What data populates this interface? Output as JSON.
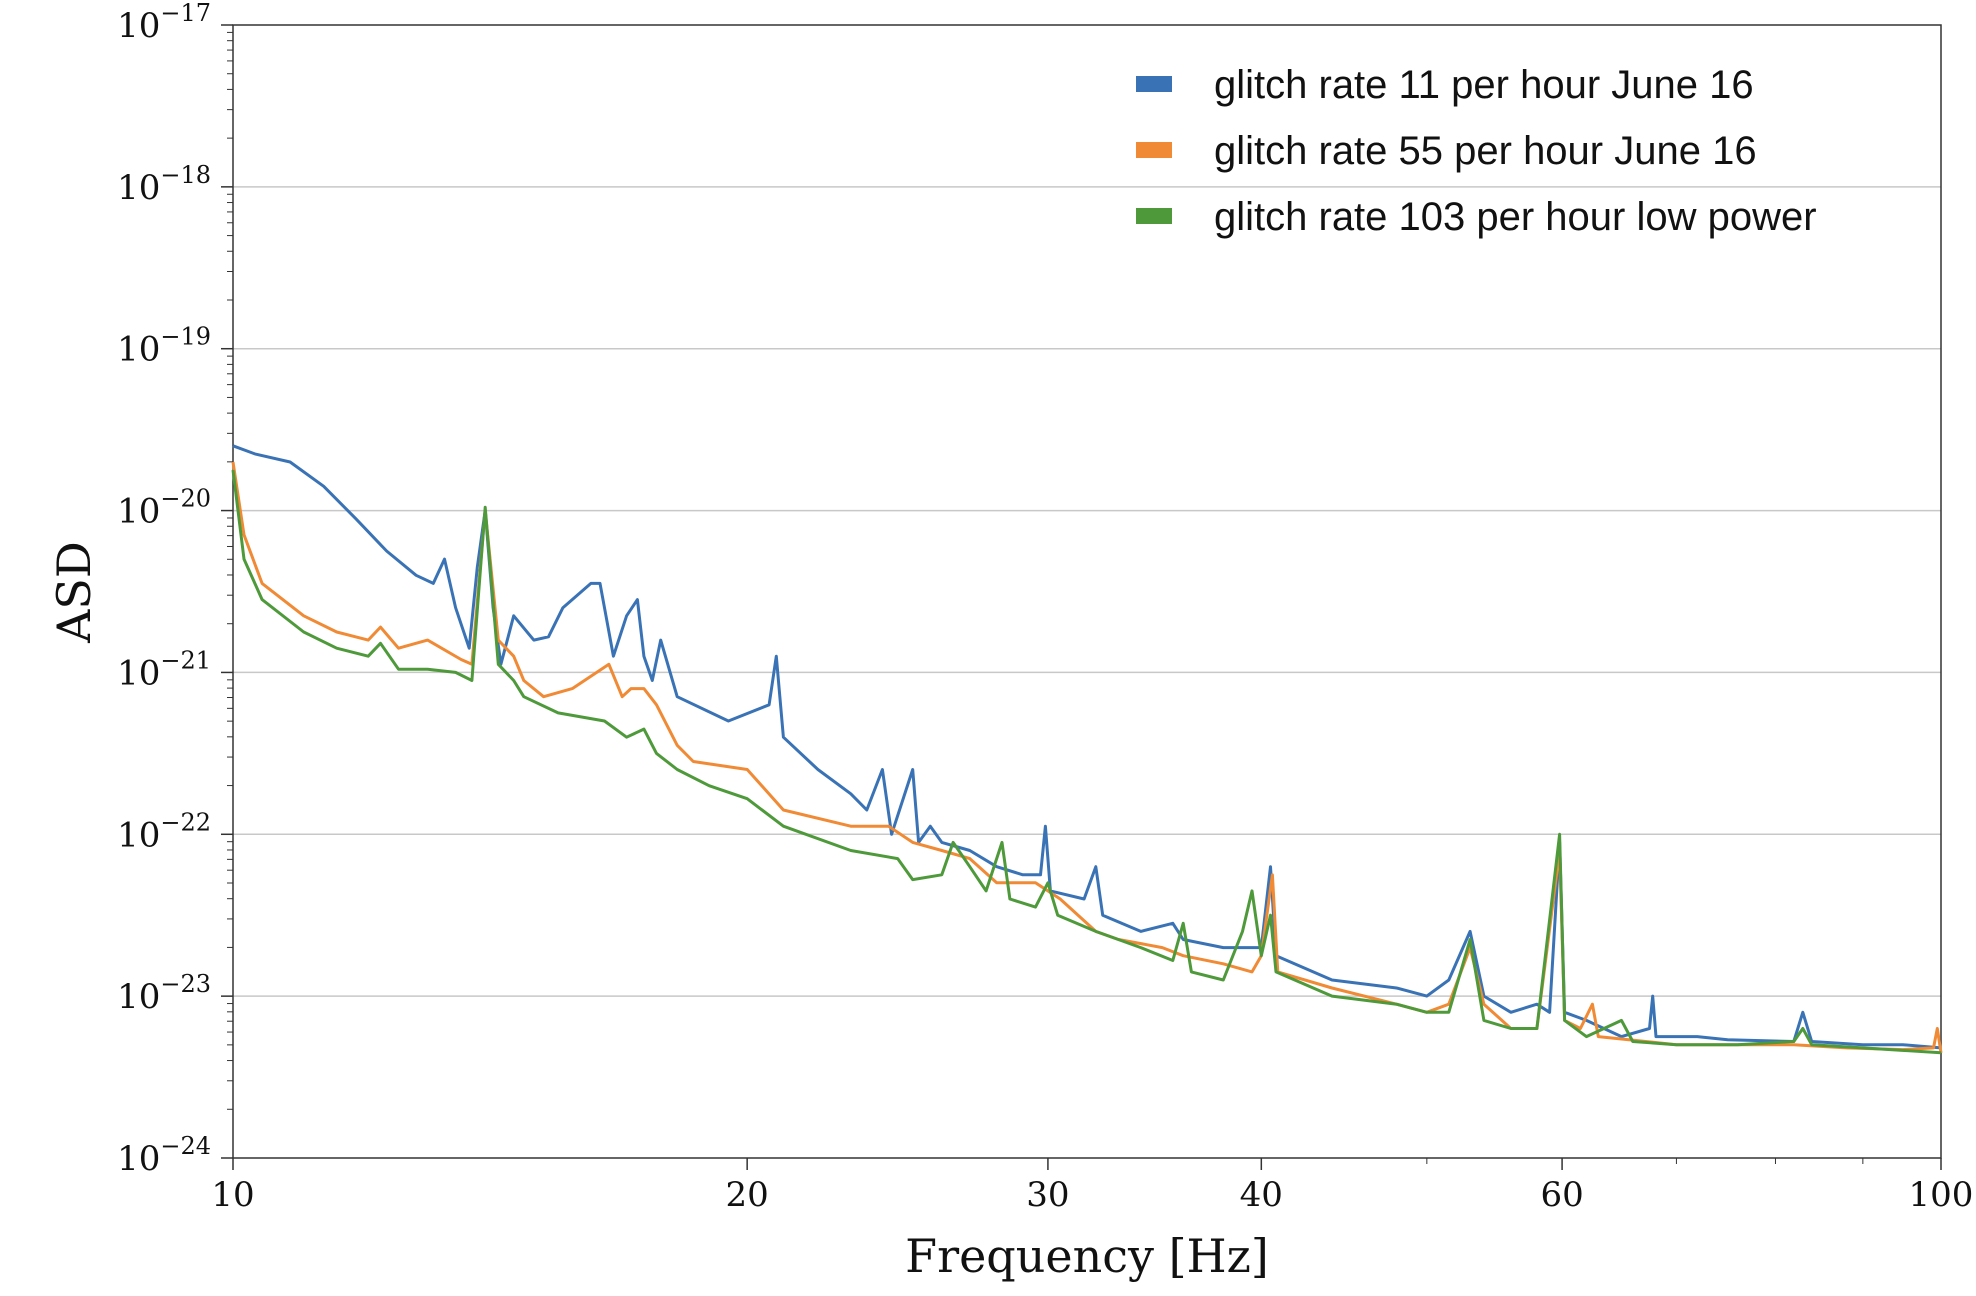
{
  "chart_data": {
    "type": "line",
    "xlabel": "Frequency [Hz]",
    "ylabel": "ASD",
    "xscale": "log",
    "yscale": "log",
    "xlim": [
      10,
      100
    ],
    "ylim": [
      1e-24,
      1e-17
    ],
    "x_ticks": [
      {
        "value": 10,
        "label": "10"
      },
      {
        "value": 20,
        "label": "20"
      },
      {
        "value": 30,
        "label": "30"
      },
      {
        "value": 40,
        "label": "40"
      },
      {
        "value": 60,
        "label": "60"
      },
      {
        "value": 100,
        "label": "100"
      }
    ],
    "y_ticks": [
      {
        "exp": -17,
        "base": "10",
        "sup": "−17"
      },
      {
        "exp": -18,
        "base": "10",
        "sup": "−18"
      },
      {
        "exp": -19,
        "base": "10",
        "sup": "−19"
      },
      {
        "exp": -20,
        "base": "10",
        "sup": "−20"
      },
      {
        "exp": -21,
        "base": "10",
        "sup": "−21"
      },
      {
        "exp": -22,
        "base": "10",
        "sup": "−22"
      },
      {
        "exp": -23,
        "base": "10",
        "sup": "−23"
      },
      {
        "exp": -24,
        "base": "10",
        "sup": "−24"
      }
    ],
    "grid": "horizontal",
    "legend_position": "top-right",
    "series": [
      {
        "name": "glitch rate 11 per hour June 16",
        "color": "#3a73b5",
        "points": [
          [
            10,
            -19.6
          ],
          [
            10.3,
            -19.65
          ],
          [
            10.8,
            -19.7
          ],
          [
            11.3,
            -19.85
          ],
          [
            11.8,
            -20.05
          ],
          [
            12.3,
            -20.25
          ],
          [
            12.8,
            -20.4
          ],
          [
            13.1,
            -20.45
          ],
          [
            13.3,
            -20.3
          ],
          [
            13.5,
            -20.6
          ],
          [
            13.75,
            -20.85
          ],
          [
            13.9,
            -20.35
          ],
          [
            14.05,
            -20.0
          ],
          [
            14.2,
            -20.6
          ],
          [
            14.35,
            -20.95
          ],
          [
            14.6,
            -20.65
          ],
          [
            15,
            -20.8
          ],
          [
            15.3,
            -20.78
          ],
          [
            15.6,
            -20.6
          ],
          [
            16.2,
            -20.45
          ],
          [
            16.4,
            -20.45
          ],
          [
            16.7,
            -20.9
          ],
          [
            17.0,
            -20.65
          ],
          [
            17.25,
            -20.55
          ],
          [
            17.4,
            -20.9
          ],
          [
            17.6,
            -21.05
          ],
          [
            17.8,
            -20.8
          ],
          [
            18.2,
            -21.15
          ],
          [
            19.5,
            -21.3
          ],
          [
            20.6,
            -21.2
          ],
          [
            20.8,
            -20.9
          ],
          [
            21.0,
            -21.4
          ],
          [
            22.0,
            -21.6
          ],
          [
            23.0,
            -21.75
          ],
          [
            23.5,
            -21.85
          ],
          [
            24.0,
            -21.6
          ],
          [
            24.3,
            -22.0
          ],
          [
            25.0,
            -21.6
          ],
          [
            25.2,
            -22.05
          ],
          [
            25.6,
            -21.95
          ],
          [
            26.0,
            -22.05
          ],
          [
            27.0,
            -22.1
          ],
          [
            28.0,
            -22.2
          ],
          [
            29.0,
            -22.25
          ],
          [
            29.7,
            -22.25
          ],
          [
            29.9,
            -21.95
          ],
          [
            30.1,
            -22.35
          ],
          [
            31.5,
            -22.4
          ],
          [
            32.0,
            -22.2
          ],
          [
            32.3,
            -22.5
          ],
          [
            34.0,
            -22.6
          ],
          [
            35.5,
            -22.55
          ],
          [
            36.0,
            -22.65
          ],
          [
            38.0,
            -22.7
          ],
          [
            40.0,
            -22.7
          ],
          [
            40.5,
            -22.2
          ],
          [
            40.8,
            -22.75
          ],
          [
            44.0,
            -22.9
          ],
          [
            48.0,
            -22.95
          ],
          [
            50.0,
            -23.0
          ],
          [
            51.5,
            -22.9
          ],
          [
            53.0,
            -22.6
          ],
          [
            54.0,
            -23.0
          ],
          [
            56.0,
            -23.1
          ],
          [
            58.0,
            -23.05
          ],
          [
            59.0,
            -23.1
          ],
          [
            59.8,
            -22.05
          ],
          [
            60.2,
            -23.1
          ],
          [
            62.0,
            -23.15
          ],
          [
            65.0,
            -23.25
          ],
          [
            67.5,
            -23.2
          ],
          [
            67.8,
            -23.0
          ],
          [
            68.1,
            -23.25
          ],
          [
            72.0,
            -23.25
          ],
          [
            75.0,
            -23.27
          ],
          [
            82.0,
            -23.28
          ],
          [
            83.0,
            -23.1
          ],
          [
            84.0,
            -23.28
          ],
          [
            90.0,
            -23.3
          ],
          [
            95.0,
            -23.3
          ],
          [
            100.0,
            -23.32
          ]
        ]
      },
      {
        "name": "glitch rate 55 per hour June 16",
        "color": "#f08a35",
        "points": [
          [
            10,
            -19.7
          ],
          [
            10.15,
            -20.15
          ],
          [
            10.4,
            -20.45
          ],
          [
            11.0,
            -20.65
          ],
          [
            11.5,
            -20.75
          ],
          [
            12.0,
            -20.8
          ],
          [
            12.2,
            -20.72
          ],
          [
            12.5,
            -20.85
          ],
          [
            13.0,
            -20.8
          ],
          [
            13.6,
            -20.92
          ],
          [
            13.8,
            -20.95
          ],
          [
            14.05,
            -20.0
          ],
          [
            14.3,
            -20.8
          ],
          [
            14.6,
            -20.9
          ],
          [
            14.8,
            -21.05
          ],
          [
            15.2,
            -21.15
          ],
          [
            15.8,
            -21.1
          ],
          [
            16.6,
            -20.95
          ],
          [
            16.9,
            -21.15
          ],
          [
            17.1,
            -21.1
          ],
          [
            17.4,
            -21.1
          ],
          [
            17.7,
            -21.2
          ],
          [
            18.2,
            -21.45
          ],
          [
            18.6,
            -21.55
          ],
          [
            20.0,
            -21.6
          ],
          [
            21.0,
            -21.85
          ],
          [
            23.0,
            -21.95
          ],
          [
            24.2,
            -21.95
          ],
          [
            25.0,
            -22.05
          ],
          [
            26.0,
            -22.1
          ],
          [
            27.0,
            -22.15
          ],
          [
            28.0,
            -22.3
          ],
          [
            29.5,
            -22.3
          ],
          [
            30.0,
            -22.35
          ],
          [
            30.5,
            -22.4
          ],
          [
            32.0,
            -22.6
          ],
          [
            33.0,
            -22.65
          ],
          [
            35.0,
            -22.7
          ],
          [
            36.0,
            -22.75
          ],
          [
            38.0,
            -22.8
          ],
          [
            39.5,
            -22.85
          ],
          [
            40.0,
            -22.75
          ],
          [
            40.6,
            -22.25
          ],
          [
            40.9,
            -22.85
          ],
          [
            44.0,
            -22.95
          ],
          [
            48.0,
            -23.05
          ],
          [
            50.0,
            -23.1
          ],
          [
            51.5,
            -23.05
          ],
          [
            53.0,
            -22.7
          ],
          [
            54.0,
            -23.05
          ],
          [
            56.0,
            -23.2
          ],
          [
            58.0,
            -23.2
          ],
          [
            59.8,
            -22.1
          ],
          [
            60.2,
            -23.15
          ],
          [
            61.5,
            -23.2
          ],
          [
            62.5,
            -23.05
          ],
          [
            63.0,
            -23.25
          ],
          [
            70.0,
            -23.3
          ],
          [
            75.0,
            -23.3
          ],
          [
            82.0,
            -23.3
          ],
          [
            88.0,
            -23.32
          ],
          [
            95.0,
            -23.33
          ],
          [
            99.0,
            -23.32
          ],
          [
            99.5,
            -23.2
          ],
          [
            100.0,
            -23.35
          ]
        ]
      },
      {
        "name": "glitch rate 103 per hour low power",
        "color": "#4e9a3b",
        "points": [
          [
            10,
            -19.75
          ],
          [
            10.15,
            -20.3
          ],
          [
            10.4,
            -20.55
          ],
          [
            11.0,
            -20.75
          ],
          [
            11.5,
            -20.85
          ],
          [
            12.0,
            -20.9
          ],
          [
            12.2,
            -20.82
          ],
          [
            12.5,
            -20.98
          ],
          [
            13.0,
            -20.98
          ],
          [
            13.5,
            -21.0
          ],
          [
            13.8,
            -21.05
          ],
          [
            14.05,
            -19.98
          ],
          [
            14.3,
            -20.95
          ],
          [
            14.6,
            -21.05
          ],
          [
            14.8,
            -21.15
          ],
          [
            15.5,
            -21.25
          ],
          [
            16.5,
            -21.3
          ],
          [
            17.0,
            -21.4
          ],
          [
            17.4,
            -21.35
          ],
          [
            17.7,
            -21.5
          ],
          [
            18.2,
            -21.6
          ],
          [
            19.0,
            -21.7
          ],
          [
            20.0,
            -21.78
          ],
          [
            21.0,
            -21.95
          ],
          [
            23.0,
            -22.1
          ],
          [
            24.5,
            -22.15
          ],
          [
            25.0,
            -22.28
          ],
          [
            26.0,
            -22.25
          ],
          [
            26.4,
            -22.05
          ],
          [
            27.0,
            -22.2
          ],
          [
            27.6,
            -22.35
          ],
          [
            28.2,
            -22.05
          ],
          [
            28.5,
            -22.4
          ],
          [
            29.5,
            -22.45
          ],
          [
            30.0,
            -22.3
          ],
          [
            30.4,
            -22.5
          ],
          [
            32.0,
            -22.6
          ],
          [
            34.0,
            -22.7
          ],
          [
            35.5,
            -22.78
          ],
          [
            36.0,
            -22.55
          ],
          [
            36.4,
            -22.85
          ],
          [
            38.0,
            -22.9
          ],
          [
            39.0,
            -22.6
          ],
          [
            39.5,
            -22.35
          ],
          [
            40.0,
            -22.75
          ],
          [
            40.5,
            -22.5
          ],
          [
            40.8,
            -22.85
          ],
          [
            44.0,
            -23.0
          ],
          [
            48.0,
            -23.05
          ],
          [
            50.0,
            -23.1
          ],
          [
            51.5,
            -23.1
          ],
          [
            53.0,
            -22.65
          ],
          [
            54.0,
            -23.15
          ],
          [
            56.0,
            -23.2
          ],
          [
            58.0,
            -23.2
          ],
          [
            59.8,
            -22.0
          ],
          [
            60.2,
            -23.15
          ],
          [
            62.0,
            -23.25
          ],
          [
            65.0,
            -23.15
          ],
          [
            66.0,
            -23.28
          ],
          [
            70.0,
            -23.3
          ],
          [
            76.0,
            -23.3
          ],
          [
            82.0,
            -23.28
          ],
          [
            83.0,
            -23.2
          ],
          [
            84.0,
            -23.3
          ],
          [
            90.0,
            -23.32
          ],
          [
            100.0,
            -23.35
          ]
        ]
      }
    ]
  }
}
